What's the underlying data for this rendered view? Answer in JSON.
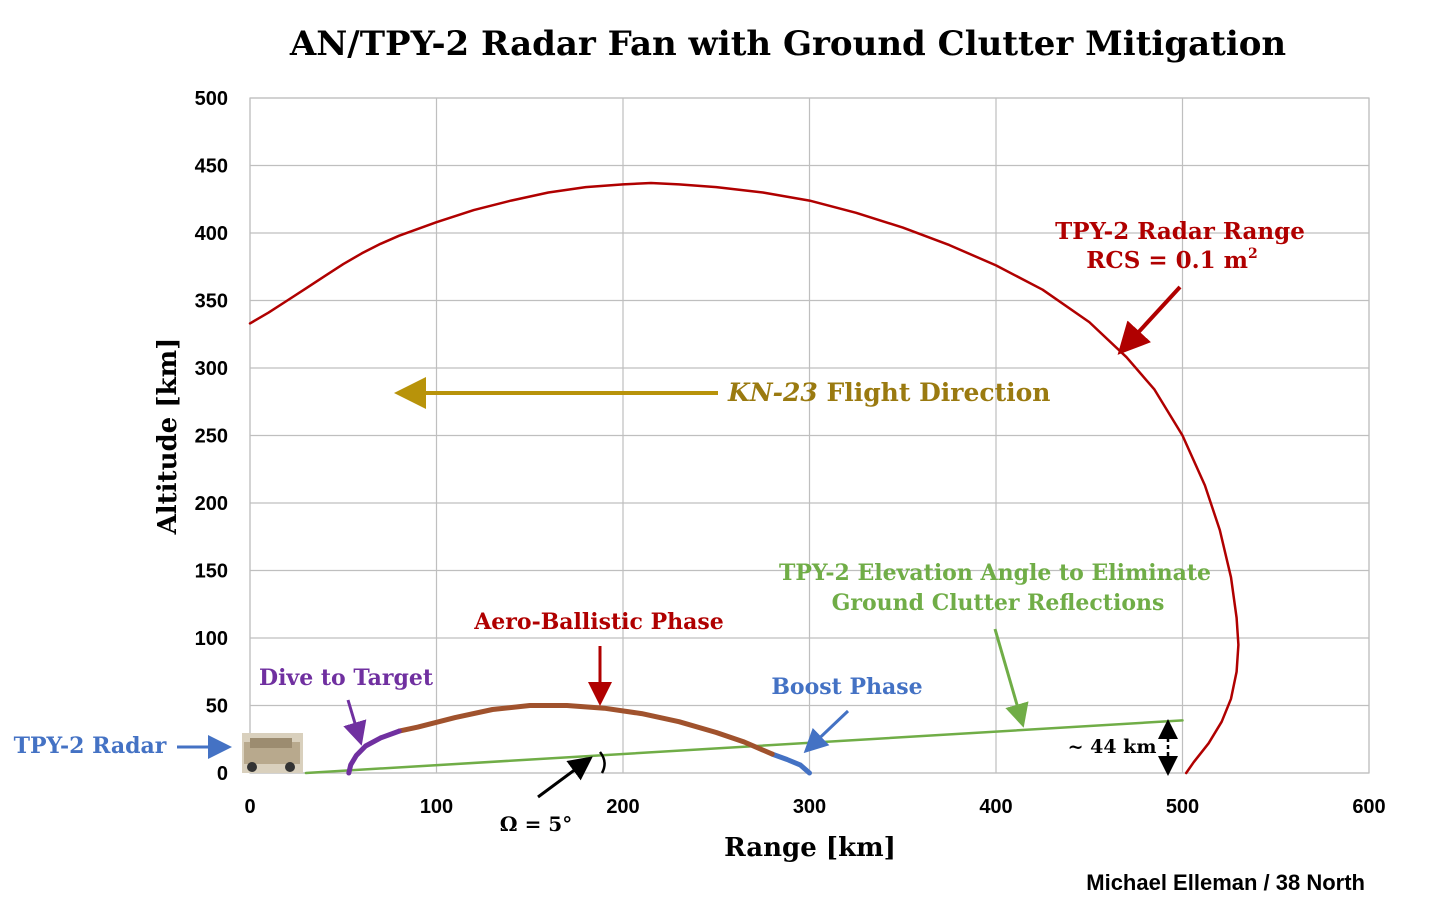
{
  "colors": {
    "radar_range": "#b00000",
    "flight_direction": "#b8930a",
    "elevation_angle": "#70ad47",
    "aero_ballistic": "#a0522d",
    "dive": "#7030a0",
    "boost": "#4472c4",
    "radar_label": "#4472c4",
    "grid": "#bfbfbf",
    "text": "#000000"
  },
  "chart_data": {
    "type": "line",
    "title": "AN/TPY-2 Radar Fan with Ground Clutter Mitigation",
    "xlabel": "Range [km]",
    "ylabel": "Altitude [km]",
    "xlim": [
      0,
      600
    ],
    "ylim": [
      0,
      500
    ],
    "x_ticks": [
      "0",
      "100",
      "200",
      "300",
      "400",
      "500",
      "600"
    ],
    "y_ticks": [
      "0",
      "50",
      "100",
      "150",
      "200",
      "250",
      "300",
      "350",
      "400",
      "450",
      "500"
    ],
    "grid": true,
    "credit": "Michael Elleman / 38 North",
    "series": [
      {
        "key": "radar_range",
        "x": [
          0,
          10,
          20,
          30,
          40,
          50,
          60,
          70,
          80,
          100,
          120,
          140,
          160,
          180,
          200,
          215,
          230,
          250,
          275,
          300,
          325,
          350,
          375,
          400,
          425,
          450,
          470,
          485,
          500,
          512,
          520,
          526,
          529,
          530,
          529,
          526,
          521,
          514,
          506,
          502
        ],
        "y": [
          333,
          341,
          350,
          359,
          368,
          377,
          385,
          392,
          398,
          408,
          417,
          424,
          430,
          434,
          436,
          437,
          436,
          434,
          430,
          424,
          415,
          404,
          391,
          376,
          358,
          334,
          308,
          284,
          250,
          213,
          180,
          145,
          115,
          95,
          75,
          55,
          38,
          22,
          8,
          0
        ]
      },
      {
        "key": "elevation_angle",
        "x": [
          30,
          500
        ],
        "y": [
          0,
          39
        ]
      },
      {
        "key": "boost",
        "x": [
          300,
          295,
          288,
          280
        ],
        "y": [
          0,
          6,
          10,
          14
        ]
      },
      {
        "key": "aero_ballistic",
        "x": [
          280,
          265,
          250,
          230,
          210,
          190,
          170,
          160,
          150,
          130,
          110,
          90,
          80
        ],
        "y": [
          14,
          23,
          30,
          38,
          44,
          48,
          50,
          50,
          50,
          47,
          41,
          34,
          31
        ]
      },
      {
        "key": "dive",
        "x": [
          80,
          70,
          62,
          57,
          54,
          53
        ],
        "y": [
          31,
          26,
          20,
          13,
          6,
          0
        ]
      }
    ],
    "annotations": {
      "radar_range_label_1": "TPY-2 Radar Range",
      "radar_range_label_2": "RCS = 0.1 m",
      "radar_range_label_sup": "2",
      "flight_direction_italic": "KN-23",
      "flight_direction_rest": " Flight Direction",
      "elevation_label_1": "TPY-2 Elevation Angle to Eliminate",
      "elevation_label_2": "Ground Clutter Reflections",
      "aero_label": "Aero-Ballistic Phase",
      "dive_label": "Dive to Target",
      "boost_label": "Boost Phase",
      "radar_label": "TPY-2 Radar",
      "height_label": "~ 44 km",
      "angle_label": "Ω = 5°"
    }
  }
}
